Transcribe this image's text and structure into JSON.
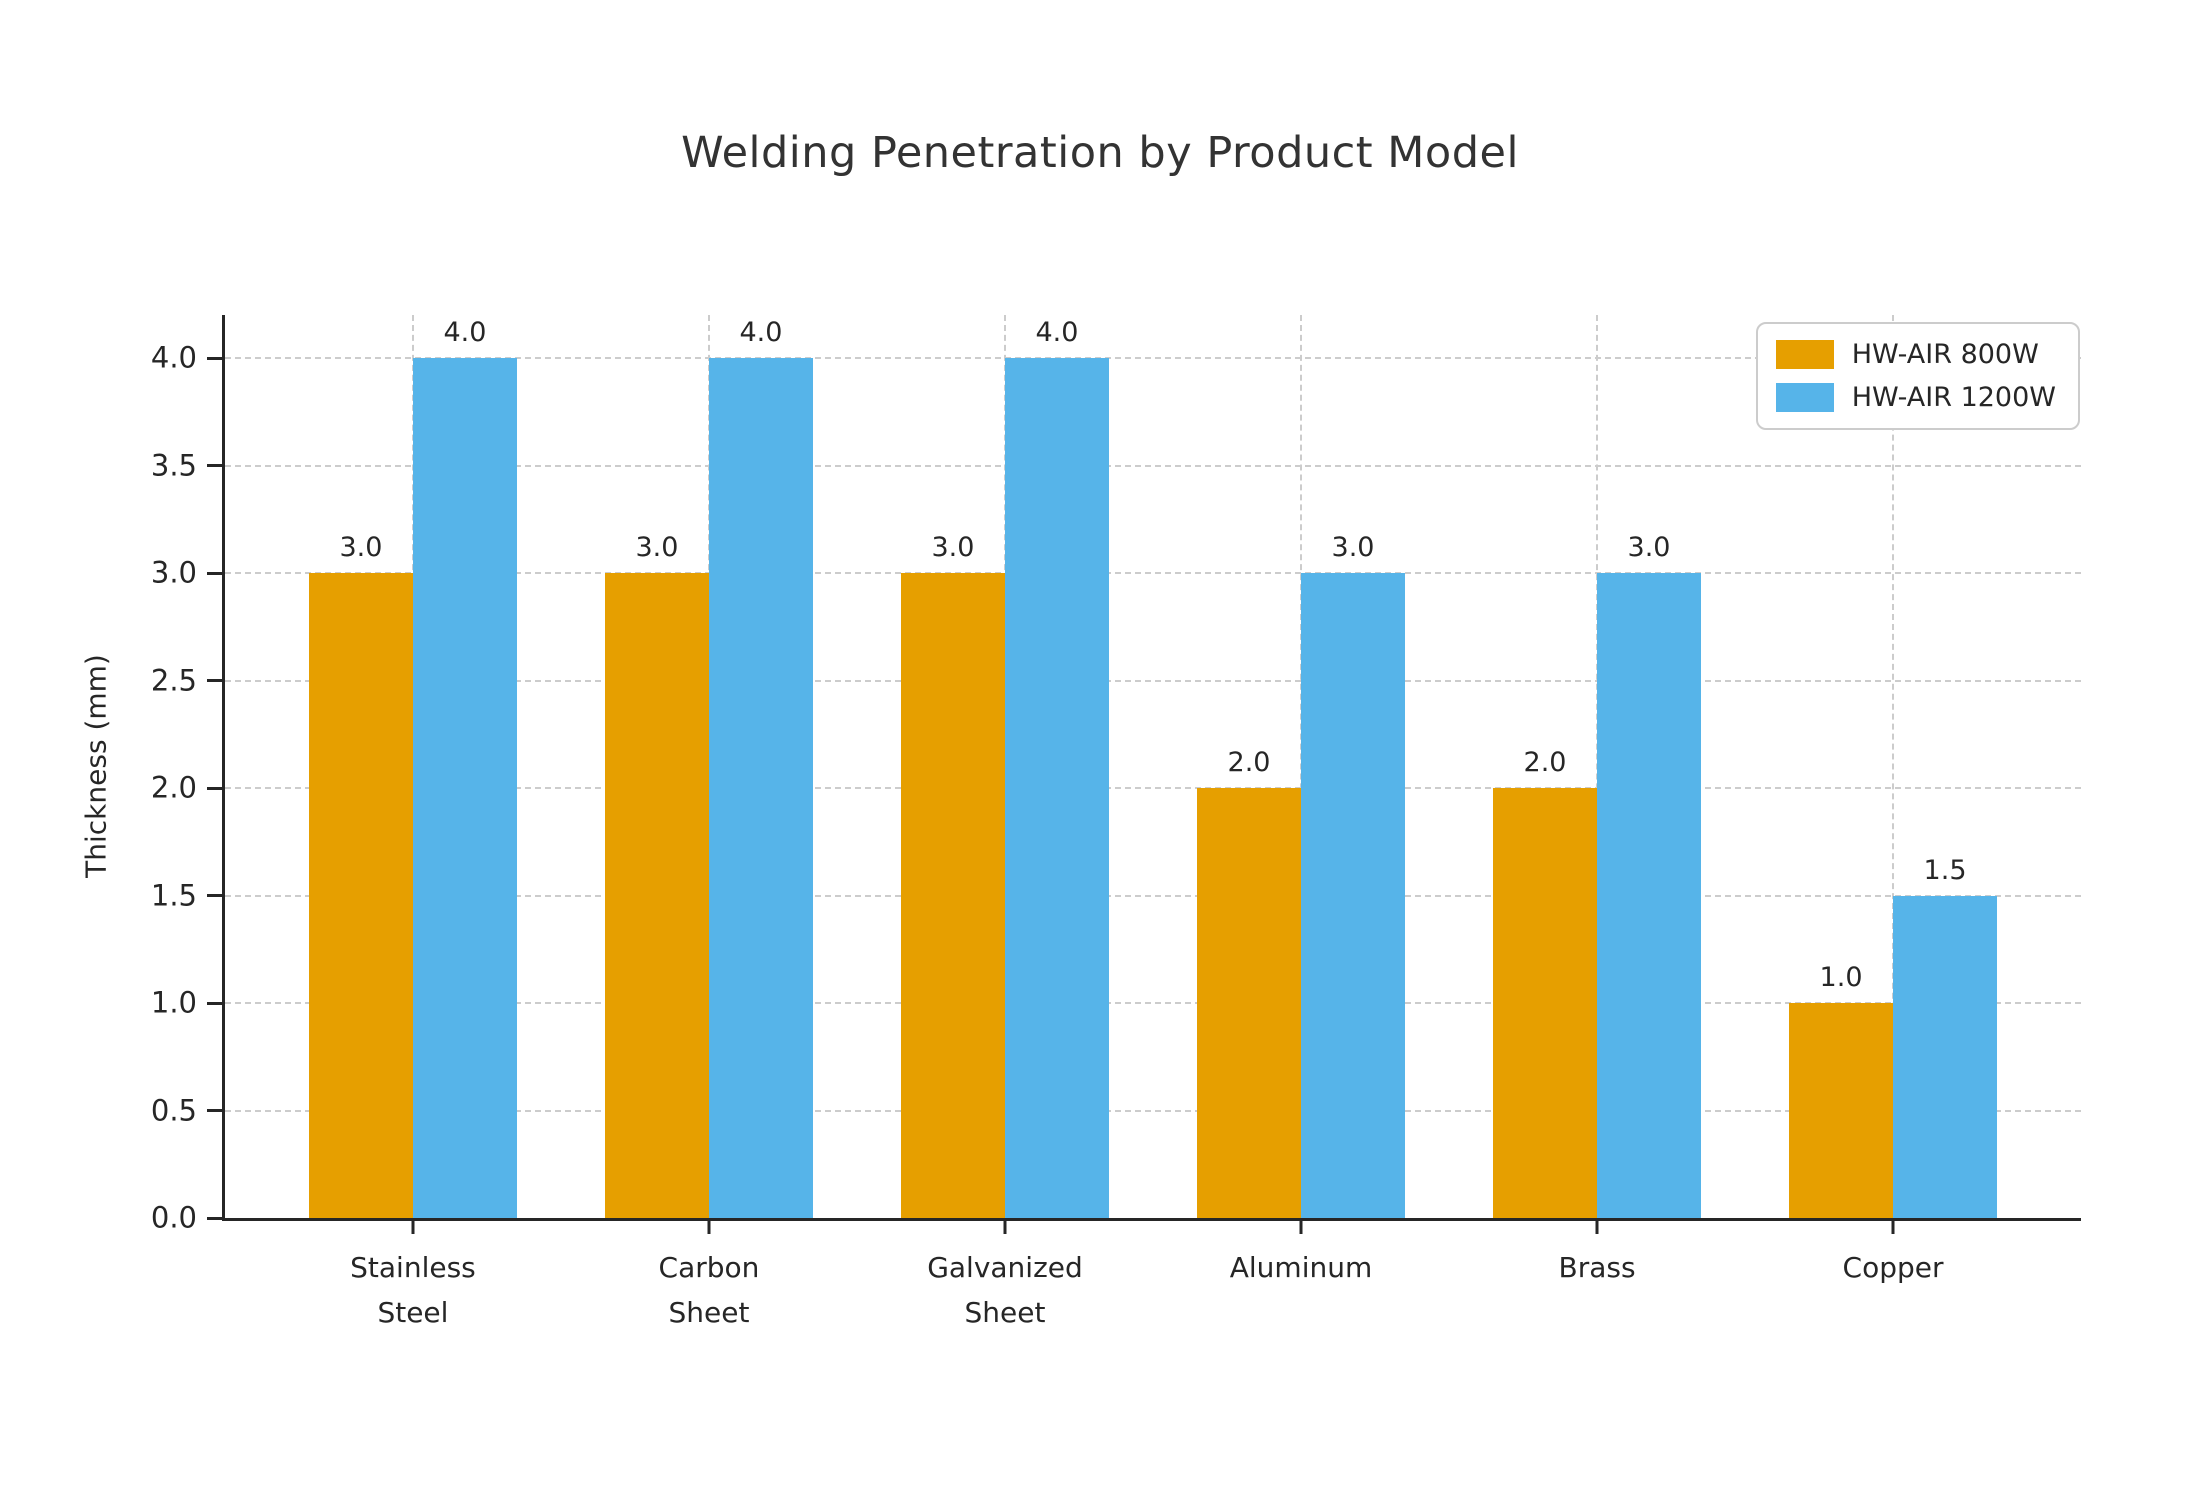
{
  "chart_data": {
    "type": "bar",
    "title": "Welding Penetration by Product Model",
    "xlabel": "",
    "ylabel": "Thickness (mm)",
    "categories": [
      "Stainless\nSteel",
      "Carbon\nSheet",
      "Galvanized\nSheet",
      "Aluminum",
      "Brass",
      "Copper"
    ],
    "series": [
      {
        "name": "HW-AIR 800W",
        "color": "#E69F00",
        "values": [
          3.0,
          3.0,
          3.0,
          2.0,
          2.0,
          1.0
        ]
      },
      {
        "name": "HW-AIR 1200W",
        "color": "#56B4E9",
        "values": [
          4.0,
          4.0,
          4.0,
          3.0,
          3.0,
          1.5
        ]
      }
    ],
    "bar_value_labels": [
      [
        "3.0",
        "3.0",
        "3.0",
        "2.0",
        "2.0",
        "1.0"
      ],
      [
        "4.0",
        "4.0",
        "4.0",
        "3.0",
        "3.0",
        "1.5"
      ]
    ],
    "ylim": [
      0,
      4.2
    ],
    "yticks": [
      "0.0",
      "0.5",
      "1.0",
      "1.5",
      "2.0",
      "2.5",
      "3.0",
      "3.5",
      "4.0"
    ],
    "grid": "dashed, horizontal at y ticks and vertical at category centers",
    "legend_position": "upper-right"
  },
  "styles": {
    "text_color": "#262626",
    "title_color": "#333333",
    "grid_color": "#cccccc",
    "spine_color": "#262626",
    "background": "#ffffff"
  }
}
